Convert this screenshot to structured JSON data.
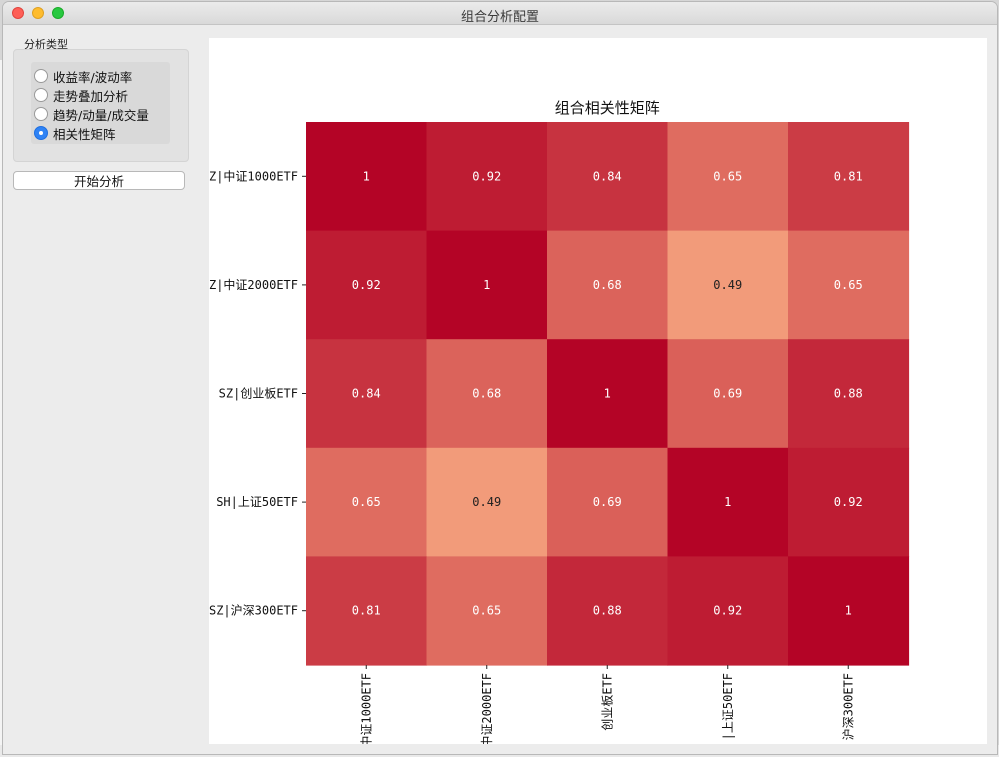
{
  "window": {
    "title": "组合分析配置"
  },
  "sidebar": {
    "group_label": "分析类型",
    "options": [
      {
        "label": "收益率/波动率",
        "selected": false
      },
      {
        "label": "走势叠加分析",
        "selected": false
      },
      {
        "label": "趋势/动量/成交量",
        "selected": false
      },
      {
        "label": "相关性矩阵",
        "selected": true
      }
    ],
    "start_button": "开始分析"
  },
  "chart_data": {
    "type": "heatmap",
    "title": "组合相关性矩阵",
    "row_labels": [
      "Z|中证1000ETF",
      "Z|中证2000ETF",
      "SZ|创业板ETF",
      "SH|上证50ETF",
      "SZ|沪深300ETF"
    ],
    "col_labels": [
      "中证1000ETF",
      "中证2000ETF",
      "创业板ETF",
      "|上证50ETF",
      "沪深300ETF"
    ],
    "values": [
      [
        1,
        0.92,
        0.84,
        0.65,
        0.81
      ],
      [
        0.92,
        1,
        0.68,
        0.49,
        0.65
      ],
      [
        0.84,
        0.68,
        1,
        0.69,
        0.88
      ],
      [
        0.65,
        0.49,
        0.69,
        1,
        0.92
      ],
      [
        0.81,
        0.65,
        0.88,
        0.92,
        1
      ]
    ],
    "colormap": "Reds",
    "colors": {
      "low": "#f29b7a",
      "high": "#b40426",
      "label_light": "#ffffff",
      "label_dark": "#222222"
    },
    "grid": false,
    "legend": "none"
  }
}
